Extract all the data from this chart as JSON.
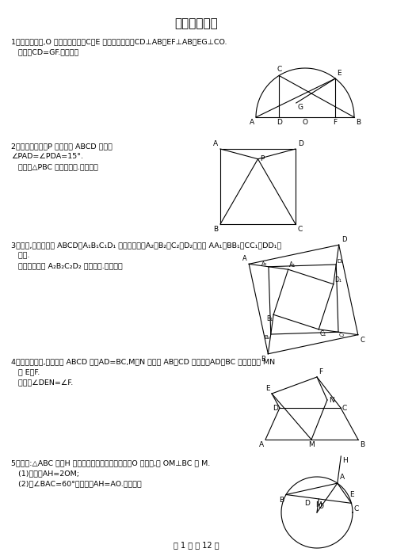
{
  "title": "几何经典难题",
  "bg_color": "#ffffff",
  "p1_lines": [
    "1、已知：如图,O 是半圆的圆心，C、E 是圆上的两点，CD⊥AB，EF⊥AB，EG⊥CO.",
    "   求证：CD=GF.（初三）"
  ],
  "p2_lines": [
    "2、已知：如图，P 是正方形 ABCD 内点，",
    "∠PAD=∠PDA=15°.",
    "   求证：△PBC 是正三角形.（初二）"
  ],
  "p3_lines": [
    "3、如图,已知四边形 ABCD、A₁B₁C₁D₁ 都是正方形，A₂、B₂、C₂、D₂分别是 AA₁、BB₁、CC₁、DD₁的",
    "   中点.",
    "   求证：四边形 A₂B₂C₂D₂ 是正方形.（初二）"
  ],
  "p4_lines": [
    "4、已知：如图,在四边形 ABCD 中，AD=BC,M、N 分别是 AB、CD 的中点，AD、BC 的延长线交 MN",
    "   于 E、F.",
    "   求证：∠DEN=∠F."
  ],
  "p5_lines": [
    "5、已知:△ABC 中，H 为重心（各边高线的交点），O 为外心,且 OM⊥BC 于 M.",
    "   (1)求证：AH=2OM;",
    "   (2)若∠BAC=60°，求证：AH=AO.（初三）"
  ],
  "footer": "第 1 页 共 12 页"
}
